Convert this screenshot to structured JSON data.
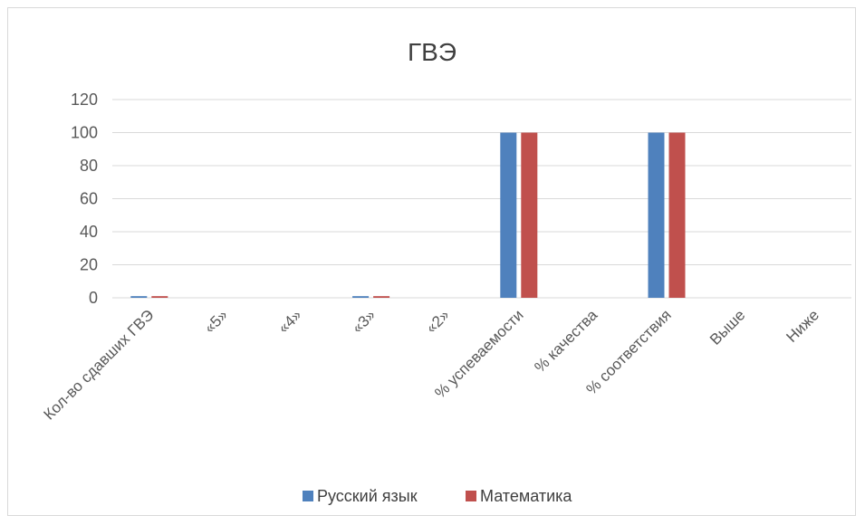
{
  "chart_data": {
    "type": "bar",
    "title": "ГВЭ",
    "categories": [
      "Кол-во сдавших ГВЭ",
      "«5»",
      "«4»",
      "«3»",
      "«2»",
      "% успеваемости",
      "% качества",
      "% соответствия",
      "Выше",
      "Ниже"
    ],
    "series": [
      {
        "name": "Русский язык",
        "color": "#4f81bd",
        "values": [
          1,
          0,
          0,
          1,
          0,
          100,
          0,
          100,
          0,
          0
        ]
      },
      {
        "name": "Математика",
        "color": "#c0504d",
        "values": [
          1,
          0,
          0,
          1,
          0,
          100,
          0,
          100,
          0,
          0
        ]
      }
    ],
    "ylim": [
      0,
      120
    ],
    "yticks": [
      0,
      20,
      40,
      60,
      80,
      100,
      120
    ],
    "grid": true,
    "legend_position": "bottom"
  }
}
